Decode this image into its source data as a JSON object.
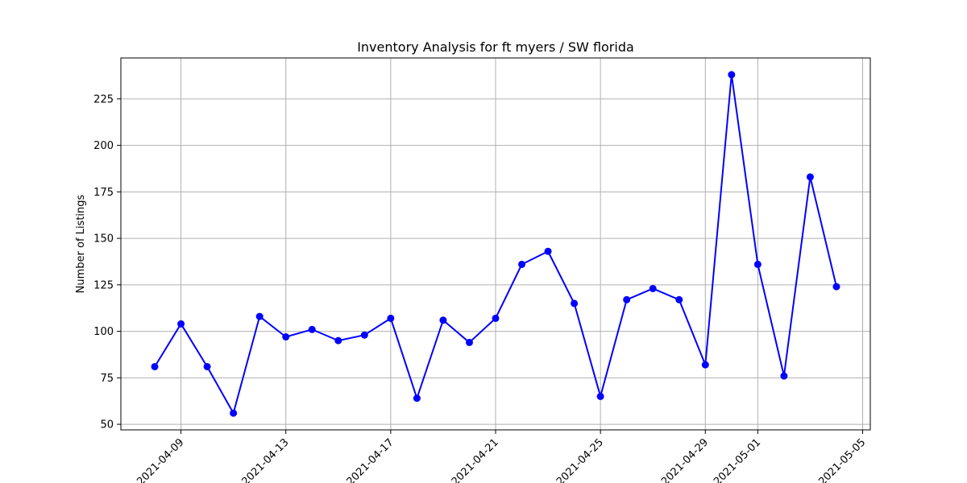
{
  "chart_data": {
    "type": "line",
    "title": "Inventory Analysis for ft myers / SW florida",
    "xlabel": "",
    "ylabel": "Number of Listings",
    "grid": true,
    "line_color": "#0000ff",
    "marker_color": "#0000ff",
    "xlim": [
      "2021-04-06 17:00",
      "2021-05-05 07:00"
    ],
    "ylim": [
      47,
      247
    ],
    "x_ticks": [
      "2021-04-09",
      "2021-04-13",
      "2021-04-17",
      "2021-04-21",
      "2021-04-25",
      "2021-04-29",
      "2021-05-01",
      "2021-05-05"
    ],
    "y_ticks": [
      50,
      75,
      100,
      125,
      150,
      175,
      200,
      225
    ],
    "series": [
      {
        "x": [
          "2021-04-08",
          "2021-04-09",
          "2021-04-10",
          "2021-04-11",
          "2021-04-12",
          "2021-04-13",
          "2021-04-14",
          "2021-04-15",
          "2021-04-16",
          "2021-04-17",
          "2021-04-18",
          "2021-04-19",
          "2021-04-20",
          "2021-04-21",
          "2021-04-22",
          "2021-04-23",
          "2021-04-24",
          "2021-04-25",
          "2021-04-26",
          "2021-04-27",
          "2021-04-28",
          "2021-04-29",
          "2021-04-30",
          "2021-05-01",
          "2021-05-02",
          "2021-05-03",
          "2021-05-04"
        ],
        "values": [
          81,
          104,
          81,
          56,
          108,
          97,
          101,
          95,
          98,
          107,
          64,
          106,
          94,
          107,
          136,
          143,
          115,
          65,
          117,
          123,
          117,
          82,
          238,
          136,
          76,
          183,
          124
        ]
      }
    ]
  }
}
